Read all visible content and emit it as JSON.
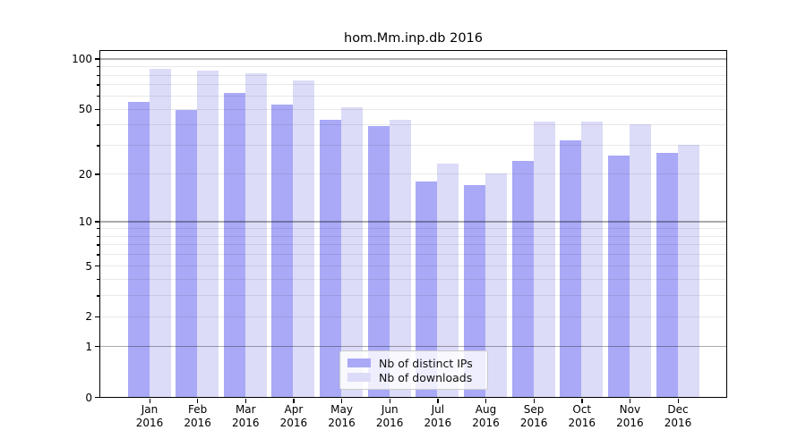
{
  "chart_data": {
    "type": "bar",
    "title": "hom.Mm.inp.db 2016",
    "months": [
      "Jan",
      "Feb",
      "Mar",
      "Apr",
      "May",
      "Jun",
      "Jul",
      "Aug",
      "Sep",
      "Oct",
      "Nov",
      "Dec"
    ],
    "year": "2016",
    "categories": [
      "Jan 2016",
      "Feb 2016",
      "Mar 2016",
      "Apr 2016",
      "May 2016",
      "Jun 2016",
      "Jul 2016",
      "Aug 2016",
      "Sep 2016",
      "Oct 2016",
      "Nov 2016",
      "Dec 2016"
    ],
    "series": [
      {
        "name": "Nb of distinct IPs",
        "color": "#a9a9f7",
        "values": [
          55,
          49,
          62,
          53,
          43,
          39,
          18,
          17,
          24,
          32,
          26,
          27
        ]
      },
      {
        "name": "Nb of downloads",
        "color": "#dcdcf8",
        "values": [
          87,
          85,
          82,
          74,
          51,
          43,
          23,
          20,
          42,
          42,
          40,
          30
        ]
      }
    ],
    "yscale": "log1p",
    "ylim": [
      0,
      111
    ],
    "y_tick_labels": [
      "100",
      "50",
      "20",
      "10",
      "5",
      "2",
      "1",
      "0"
    ],
    "y_tick_values": [
      100,
      50,
      20,
      10,
      5,
      2,
      1,
      0
    ],
    "y_minor_values": [
      2,
      3,
      4,
      5,
      6,
      7,
      8,
      9,
      20,
      30,
      40,
      50,
      60,
      70,
      80,
      90
    ],
    "y_major_grid_values": [
      1,
      10,
      100
    ],
    "grid": "horizontal (minor log gridlines light, decade gridlines darker), drawn over bars",
    "legend_position": "lower center",
    "colors": {
      "ips_bar": "#a9a9f7",
      "downloads_bar": "#dcdcf8",
      "spine": "#000000",
      "background": "#ffffff"
    }
  }
}
